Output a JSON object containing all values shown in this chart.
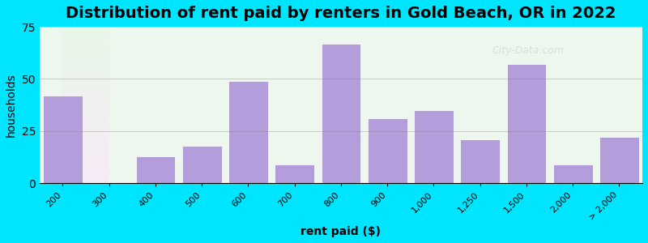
{
  "title": "Distribution of rent paid by renters in Gold Beach, OR in 2022",
  "xlabel": "rent paid ($)",
  "ylabel": "households",
  "categories": [
    "200",
    "300",
    "400",
    "500",
    "600",
    "700",
    "800",
    "900",
    "1,000",
    "1,250",
    "1,500",
    "2,000",
    "> 2,000"
  ],
  "values": [
    42,
    0,
    13,
    18,
    49,
    9,
    67,
    31,
    35,
    21,
    57,
    9,
    22
  ],
  "bar_color": "#b39ddb",
  "background_outer": "#00e5ff",
  "background_inner_top": "#e8f5e9",
  "background_inner_bottom": "#f3e5f5",
  "ylim": [
    0,
    75
  ],
  "yticks": [
    0,
    25,
    50,
    75
  ],
  "title_fontsize": 14,
  "axis_label_fontsize": 10
}
